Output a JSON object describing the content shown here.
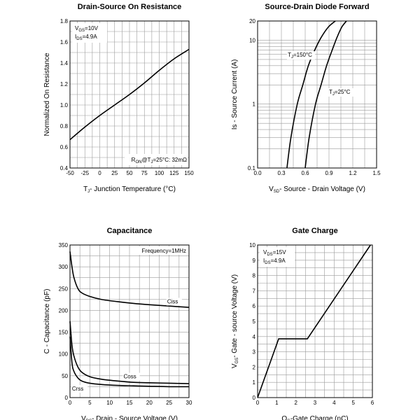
{
  "chart_data": [
    {
      "id": "rdson",
      "type": "line",
      "title": "Drain-Source On Resistance",
      "xlabel": "T",
      "xlabel_sub": "J",
      "xlabel_rest": "- Junction Temperature (°C)",
      "ylabel": "Normalized On Resistance",
      "xlim": [
        -50,
        150
      ],
      "ylim": [
        0.4,
        1.8
      ],
      "xscale": "linear",
      "yscale": "linear",
      "xticks": [
        -50,
        -25,
        0,
        25,
        50,
        75,
        100,
        125,
        150
      ],
      "yticks": [
        0.4,
        0.6,
        0.8,
        1.0,
        1.2,
        1.4,
        1.6,
        1.8
      ],
      "ytick_labels": [
        "0.4",
        "0.6",
        "0.8",
        "1.0",
        "1.2",
        "1.4",
        "1.6",
        "1.8"
      ],
      "grid": true,
      "legend": [
        {
          "main": "V",
          "sub": "GS",
          "rest": "=10V"
        },
        {
          "main": "I",
          "sub": "DS",
          "rest": "=4.9A"
        }
      ],
      "annotation": {
        "main": "R",
        "sub": "ON",
        "mid": "@T",
        "sub2": "J",
        "rest": "=25°C: 32mΩ"
      },
      "series": [
        {
          "name": "Rds(on)",
          "x": [
            -50,
            -25,
            0,
            25,
            50,
            75,
            100,
            125,
            150
          ],
          "y": [
            0.67,
            0.79,
            0.9,
            1.0,
            1.1,
            1.21,
            1.33,
            1.44,
            1.53
          ]
        }
      ]
    },
    {
      "id": "diode",
      "type": "line",
      "title": "Source-Drain Diode Forward",
      "xlabel": "V",
      "xlabel_sub": "SD",
      "xlabel_rest": "- Source - Drain Voltage (V)",
      "ylabel": "Is - Source Current (A)",
      "xlim": [
        0.0,
        1.5
      ],
      "ylim": [
        0.1,
        20
      ],
      "xscale": "linear",
      "yscale": "log",
      "xticks": [
        0.0,
        0.3,
        0.6,
        0.9,
        1.2,
        1.5
      ],
      "xtick_labels": [
        "0.0",
        "0.3",
        "0.6",
        "0.9",
        "1.2",
        "1.5"
      ],
      "yticks": [
        0.1,
        1,
        10,
        20
      ],
      "ytick_labels": [
        "0.1",
        "1",
        "10",
        "20"
      ],
      "grid": true,
      "series": [
        {
          "name": "TJ=150°C",
          "label_main": "T",
          "label_sub": "J",
          "label_rest": "=150°C",
          "x": [
            0.37,
            0.42,
            0.5,
            0.57,
            0.64,
            0.72,
            0.8,
            0.89,
            0.98
          ],
          "y": [
            0.1,
            0.3,
            1,
            2,
            4,
            7,
            11,
            16,
            20
          ]
        },
        {
          "name": "TJ=25°C",
          "label_main": "T",
          "label_sub": "J",
          "label_rest": "=25°C",
          "x": [
            0.6,
            0.65,
            0.73,
            0.8,
            0.87,
            0.94,
            1.0,
            1.06,
            1.12
          ],
          "y": [
            0.1,
            0.3,
            1,
            2,
            4,
            7,
            11,
            16,
            20
          ]
        }
      ]
    },
    {
      "id": "capacitance",
      "type": "line",
      "title": "Capacitance",
      "xlabel": "V",
      "xlabel_sub": "DS",
      "xlabel_rest": "- Drain - Source Voltage (V)",
      "ylabel": "C - Capacitance (pF)",
      "xlim": [
        0,
        30
      ],
      "ylim": [
        0,
        350
      ],
      "xscale": "linear",
      "yscale": "linear",
      "xticks": [
        0,
        5,
        10,
        15,
        20,
        25,
        30
      ],
      "yticks": [
        0,
        50,
        100,
        150,
        200,
        250,
        300,
        350
      ],
      "grid": true,
      "annotation_text": "Frequency=1MHz",
      "series": [
        {
          "name": "Ciss",
          "x": [
            0,
            0.5,
            1,
            2,
            3,
            5,
            8,
            12,
            16,
            20,
            25,
            30
          ],
          "y": [
            335,
            300,
            275,
            250,
            240,
            232,
            225,
            220,
            216,
            213,
            210,
            207
          ]
        },
        {
          "name": "Coss",
          "x": [
            0,
            0.5,
            1,
            2,
            3,
            5,
            8,
            12,
            16,
            20,
            25,
            30
          ],
          "y": [
            175,
            120,
            95,
            70,
            58,
            48,
            42,
            38,
            35,
            34,
            33,
            32
          ]
        },
        {
          "name": "Crss",
          "x": [
            0,
            0.5,
            1,
            2,
            3,
            5,
            8,
            12,
            16,
            20,
            25,
            30
          ],
          "y": [
            140,
            80,
            60,
            45,
            38,
            33,
            30,
            28,
            27,
            26,
            25,
            25
          ]
        }
      ]
    },
    {
      "id": "gatecharge",
      "type": "line",
      "title": "Gate Charge",
      "xlabel": "Q",
      "xlabel_sub": "G",
      "xlabel_rest": "-Gate Charge (nC)",
      "ylabel": "V",
      "ylabel_sub": "GS",
      "ylabel_rest": "- Gate - source Voltage (V)",
      "xlim": [
        0,
        6
      ],
      "ylim": [
        0,
        10
      ],
      "xscale": "linear",
      "yscale": "linear",
      "xticks": [
        0,
        1,
        2,
        3,
        4,
        5,
        6
      ],
      "yticks": [
        0,
        1,
        2,
        3,
        4,
        5,
        6,
        7,
        8,
        9,
        10
      ],
      "grid": true,
      "legend": [
        {
          "main": "V",
          "sub": "DS",
          "rest": "=15V"
        },
        {
          "main": "I",
          "sub": "DS",
          "rest": "=4.9A"
        }
      ],
      "series": [
        {
          "name": "VGS",
          "x": [
            0,
            1.1,
            2.6,
            5.9
          ],
          "y": [
            0,
            3.85,
            3.85,
            10
          ]
        }
      ]
    }
  ]
}
